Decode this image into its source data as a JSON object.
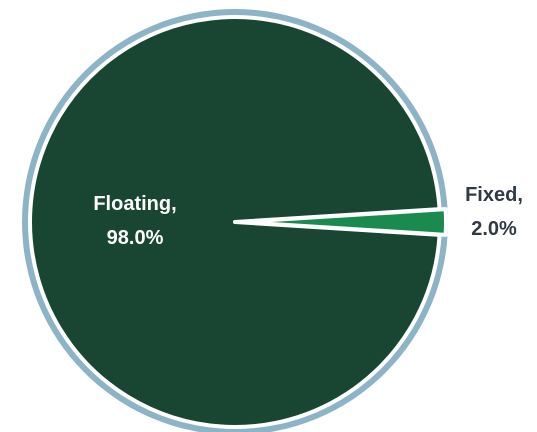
{
  "chart_data": {
    "type": "pie",
    "title": "",
    "slices": [
      {
        "label": "Floating",
        "value": 98.0,
        "display": "98.0%",
        "color": "#184632"
      },
      {
        "label": "Fixed",
        "value": 2.0,
        "display": "2.0%",
        "color": "#1b8a4e"
      }
    ],
    "outer_ring_color": "#8db3c7",
    "label_color_inside": "#ffffff",
    "label_color_outside": "#2f3a45",
    "legend": "none",
    "fixed_slice_exploded": true
  }
}
